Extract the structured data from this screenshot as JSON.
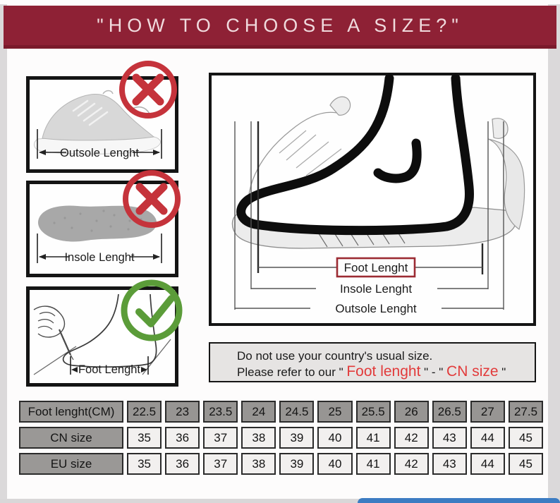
{
  "header": {
    "title": "\"HOW TO CHOOSE A SIZE?\""
  },
  "panels": [
    {
      "id": "outsole",
      "label": "Outsole Lenght",
      "badge": "wrong"
    },
    {
      "id": "insole",
      "label": "Insole Lenght",
      "badge": "wrong"
    },
    {
      "id": "foot",
      "label": "Foot Lenght",
      "badge": "correct"
    }
  ],
  "diagram": {
    "foot_label": "Foot Lenght",
    "insole_label": "Insole Lenght",
    "outsole_label": "Outsole Lenght"
  },
  "note": {
    "line1": "Do not use your country's usual size.",
    "line2_prefix": "Please refer to our \" ",
    "highlight_foot": "Foot lenght",
    "line2_middle": " \" - \" ",
    "highlight_cn": "CN size",
    "line2_suffix": " \""
  },
  "size_table": {
    "rows": [
      {
        "label": "Foot lenght(CM)",
        "values": [
          "22.5",
          "23",
          "23.5",
          "24",
          "24.5",
          "25",
          "25.5",
          "26",
          "26.5",
          "27",
          "27.5"
        ]
      },
      {
        "label": "CN size",
        "values": [
          "35",
          "36",
          "37",
          "38",
          "39",
          "40",
          "41",
          "42",
          "43",
          "44",
          "45"
        ]
      },
      {
        "label": "EU size",
        "values": [
          "35",
          "36",
          "37",
          "38",
          "39",
          "40",
          "41",
          "42",
          "43",
          "44",
          "45"
        ]
      }
    ]
  },
  "colors": {
    "banner": "#8e2135",
    "wrong_red": "#c5333b",
    "correct_green": "#5b9c39",
    "highlight_red": "#e23b3b",
    "foot_label_border": "#9c2b33",
    "note_bg": "#e6e4e3",
    "table_gray": "#9a9896",
    "accent_blue": "#3c7cc2"
  }
}
